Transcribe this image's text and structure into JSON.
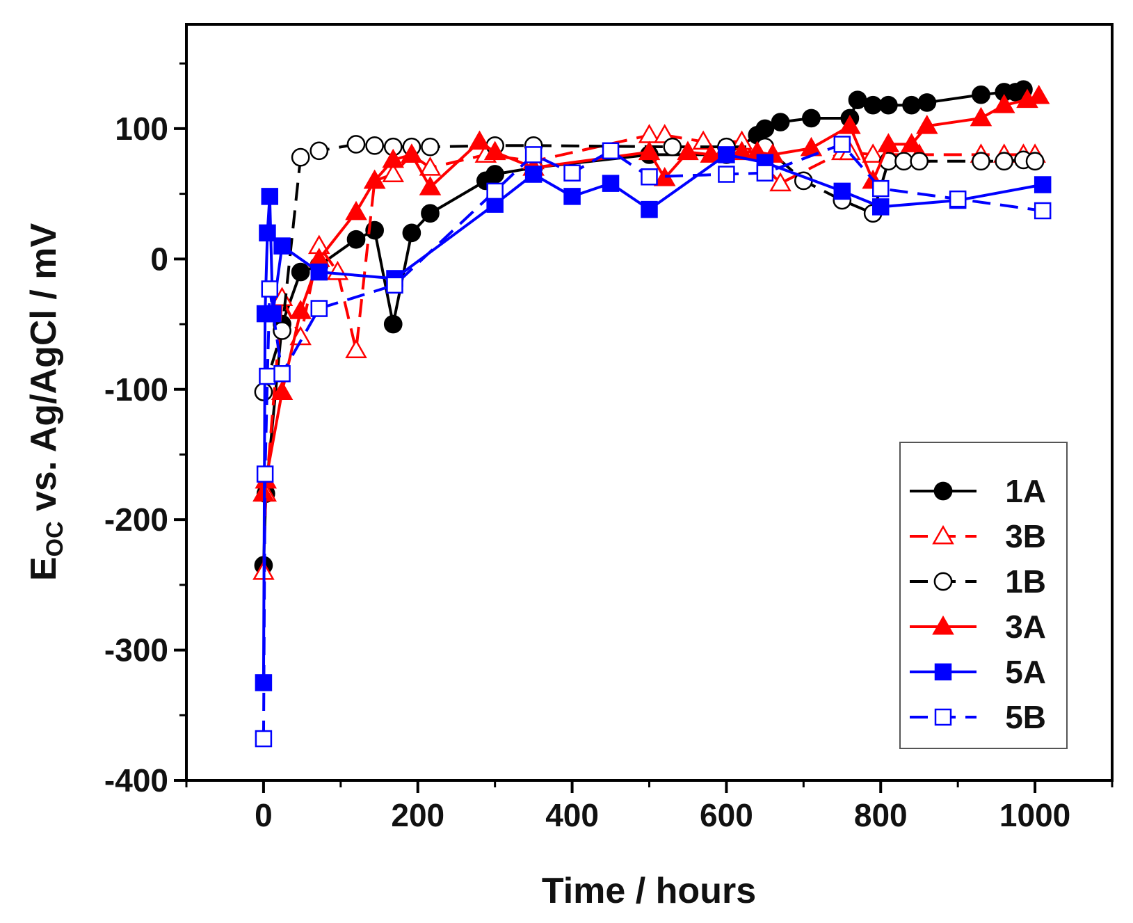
{
  "chart_data": {
    "type": "line",
    "xlabel": "Time / hours",
    "ylabel_main": "E",
    "ylabel_sub": "OC",
    "ylabel_rest": " vs. Ag/AgCl / mV",
    "xlim": [
      -100,
      1100
    ],
    "ylim": [
      -400,
      180
    ],
    "xticks": [
      0,
      200,
      400,
      600,
      800,
      1000
    ],
    "yticks": [
      -400,
      -300,
      -200,
      -100,
      0,
      100
    ],
    "xtick_labels": [
      "0",
      "200",
      "400",
      "600",
      "800",
      "1000"
    ],
    "ytick_labels": [
      "-400",
      "-300",
      "-200",
      "-100",
      "0",
      "100"
    ],
    "grid": false,
    "legend_position": "bottom-right",
    "series": [
      {
        "name": "1A",
        "color": "#000000",
        "marker": "circle",
        "filled": true,
        "dash": "solid",
        "x": [
          0,
          3,
          24,
          48,
          72,
          120,
          144,
          168,
          192,
          216,
          288,
          300,
          350,
          500,
          600,
          640,
          650,
          670,
          710,
          760,
          770,
          790,
          810,
          840,
          860,
          930,
          960,
          975,
          985
        ],
        "y": [
          -235,
          -180,
          -50,
          -10,
          -5,
          15,
          22,
          -50,
          20,
          35,
          60,
          65,
          70,
          80,
          80,
          95,
          100,
          105,
          108,
          108,
          122,
          118,
          118,
          118,
          120,
          126,
          128,
          128,
          130
        ]
      },
      {
        "name": "3B",
        "color": "#ff0000",
        "marker": "triangle",
        "filled": false,
        "dash": "dash",
        "x": [
          0,
          3,
          24,
          48,
          72,
          96,
          120,
          144,
          168,
          192,
          216,
          288,
          350,
          500,
          520,
          570,
          620,
          670,
          750,
          760,
          790,
          810,
          850,
          930,
          960,
          985,
          1000
        ],
        "y": [
          -240,
          -180,
          -30,
          -60,
          10,
          -10,
          -70,
          60,
          65,
          80,
          70,
          80,
          75,
          95,
          95,
          90,
          90,
          58,
          82,
          82,
          80,
          80,
          80,
          80,
          80,
          80,
          80
        ]
      },
      {
        "name": "1B",
        "color": "#000000",
        "marker": "circle",
        "filled": false,
        "dash": "dash",
        "x": [
          0,
          24,
          48,
          72,
          120,
          144,
          168,
          192,
          216,
          300,
          350,
          530,
          600,
          650,
          700,
          750,
          790,
          810,
          830,
          850,
          930,
          960,
          985,
          1000
        ],
        "y": [
          -102,
          -55,
          78,
          83,
          88,
          87,
          86,
          86,
          86,
          87,
          87,
          86,
          86,
          86,
          60,
          45,
          35,
          75,
          75,
          75,
          75,
          75,
          76,
          75
        ]
      },
      {
        "name": "3A",
        "color": "#ff0000",
        "marker": "triangle",
        "filled": true,
        "dash": "solid",
        "x": [
          0,
          3,
          24,
          48,
          72,
          120,
          144,
          168,
          192,
          216,
          280,
          300,
          350,
          500,
          520,
          550,
          580,
          620,
          640,
          660,
          710,
          760,
          790,
          810,
          840,
          860,
          930,
          960,
          990,
          1005
        ],
        "y": [
          -180,
          -170,
          -102,
          -40,
          0,
          36,
          60,
          76,
          80,
          55,
          90,
          82,
          70,
          82,
          62,
          82,
          80,
          82,
          82,
          80,
          85,
          102,
          60,
          88,
          88,
          102,
          108,
          118,
          122,
          125
        ]
      },
      {
        "name": "5A",
        "color": "#0000ff",
        "marker": "square",
        "filled": true,
        "dash": "solid",
        "x": [
          0,
          2,
          5,
          8,
          12,
          24,
          72,
          170,
          300,
          350,
          400,
          450,
          500,
          600,
          650,
          750,
          800,
          900,
          1010
        ],
        "y": [
          -325,
          -42,
          20,
          48,
          -42,
          10,
          -10,
          -15,
          42,
          65,
          48,
          58,
          38,
          80,
          74,
          52,
          40,
          45,
          57
        ]
      },
      {
        "name": "5B",
        "color": "#0000ff",
        "marker": "square",
        "filled": false,
        "dash": "dash",
        "x": [
          0,
          2,
          5,
          8,
          24,
          72,
          170,
          300,
          350,
          400,
          450,
          500,
          600,
          650,
          750,
          800,
          900,
          1010
        ],
        "y": [
          -368,
          -165,
          -90,
          -23,
          -88,
          -38,
          -20,
          52,
          80,
          66,
          83,
          63,
          65,
          66,
          88,
          54,
          46,
          37
        ]
      }
    ]
  }
}
